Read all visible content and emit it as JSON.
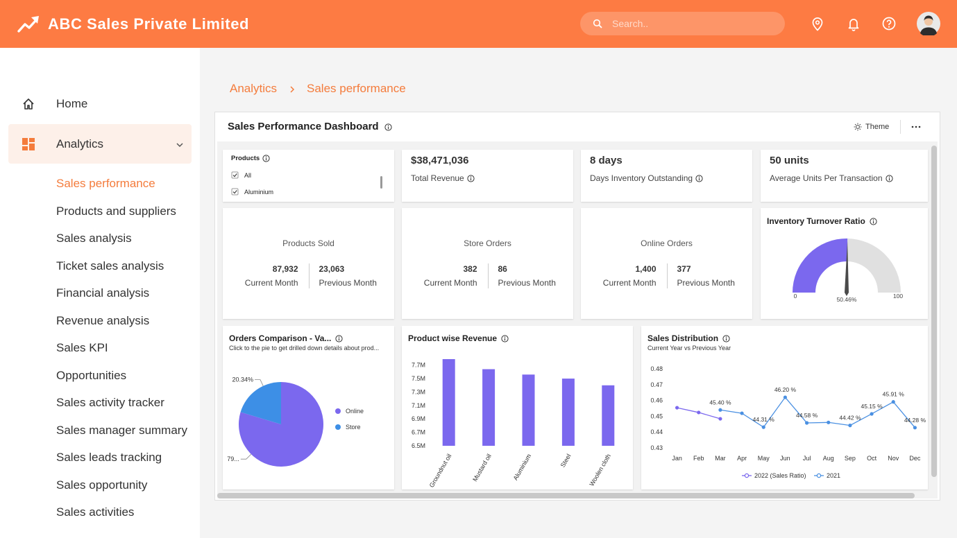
{
  "header": {
    "title": "ABC Sales Private Limited",
    "search_placeholder": "Search.."
  },
  "sidebar": {
    "items": [
      "Home",
      "Analytics"
    ],
    "submenu": [
      "Sales performance",
      "Products and suppliers",
      "Sales analysis",
      "Ticket sales analysis",
      "Financial analysis",
      "Revenue analysis",
      "Sales KPI",
      "Opportunities",
      "Sales activity tracker",
      "Sales manager summary",
      "Sales leads tracking",
      "Sales opportunity",
      "Sales activities"
    ]
  },
  "breadcrumb": [
    "Analytics",
    "Sales performance"
  ],
  "dashboard": {
    "title": "Sales Performance Dashboard",
    "theme_button": "Theme",
    "filter": {
      "title": "Products",
      "options": [
        "All",
        "Aluminium"
      ]
    },
    "kpis": [
      {
        "value": "$38,471,036",
        "label": "Total Revenue"
      },
      {
        "value": "8 days",
        "label": "Days Inventory Outstanding"
      },
      {
        "value": "50 units",
        "label": "Average Units Per Transaction"
      }
    ],
    "comparisons": [
      {
        "title": "Products Sold",
        "current": "87,932",
        "current_label": "Current Month",
        "previous": "23,063",
        "previous_label": "Previous Month"
      },
      {
        "title": "Store Orders",
        "current": "382",
        "current_label": "Current Month",
        "previous": "86",
        "previous_label": "Previous Month"
      },
      {
        "title": "Online Orders",
        "current": "1,400",
        "current_label": "Current Month",
        "previous": "377",
        "previous_label": "Previous Month"
      }
    ]
  },
  "chart_data": [
    {
      "type": "gauge",
      "title": "Inventory Turnover Ratio",
      "values": [
        50.46
      ],
      "value_labels": [
        "50.46%"
      ],
      "ylim": [
        0,
        100
      ],
      "yticks": [
        0,
        100
      ],
      "color": "#7b68ee",
      "track_color": "#e0e0e0"
    },
    {
      "type": "pie",
      "title": "Orders Comparison - Va...",
      "subtitle": "Click to the pie to get drilled down details about prod...",
      "categories": [
        "Online",
        "Store"
      ],
      "values": [
        79.66,
        20.34
      ],
      "value_labels": [
        "79...",
        "20.34%"
      ],
      "colors": [
        "#7b68ee",
        "#3d8fe6"
      ],
      "legend": "right"
    },
    {
      "type": "bar",
      "title": "Product wise Revenue",
      "categories": [
        "Groundnut oil",
        "Mustard oil",
        "Aluminium",
        "Steel",
        "Woolen cloth"
      ],
      "values": [
        7790000,
        7640000,
        7560000,
        7500000,
        7400000
      ],
      "color": "#7b68ee",
      "ylim": [
        6500000,
        7800000
      ],
      "yticks": [
        {
          "value": 6500000,
          "label": "6.5M"
        },
        {
          "value": 6700000,
          "label": "6.7M"
        },
        {
          "value": 6900000,
          "label": "6.9M"
        },
        {
          "value": 7100000,
          "label": "7.1M"
        },
        {
          "value": 7300000,
          "label": "7.3M"
        },
        {
          "value": 7500000,
          "label": "7.5M"
        },
        {
          "value": 7700000,
          "label": "7.7M"
        }
      ],
      "grid": false
    },
    {
      "type": "line",
      "title": "Sales Distribution",
      "subtitle": "Current Year vs Previous Year",
      "categories": [
        "Jan",
        "Feb",
        "Mar",
        "Apr",
        "May",
        "Jun",
        "Jul",
        "Aug",
        "Sep",
        "Oct",
        "Nov",
        "Dec"
      ],
      "series": [
        {
          "name": "2022 (Sales Ratio)",
          "color": "#7b68ee",
          "values": [
            0.4554,
            0.4524,
            0.4484,
            null,
            null,
            null,
            null,
            null,
            null,
            null,
            null,
            null
          ]
        },
        {
          "name": "2021",
          "color": "#4a90e2",
          "values": [
            null,
            null,
            0.454,
            0.4519,
            0.4431,
            0.462,
            0.4458,
            0.4461,
            0.4442,
            0.4515,
            0.4591,
            0.4428
          ],
          "value_labels": [
            null,
            null,
            "45.40 %",
            null,
            "44.31 %",
            "46.20 %",
            "44.58 %",
            null,
            "44.42 %",
            "45.15 %",
            "45.91 %",
            "44.28 %"
          ]
        }
      ],
      "ylim": [
        0.43,
        0.48
      ],
      "yticks": [
        0.43,
        0.44,
        0.45,
        0.46,
        0.47,
        0.48
      ],
      "grid": false,
      "legend": "bottom"
    }
  ]
}
